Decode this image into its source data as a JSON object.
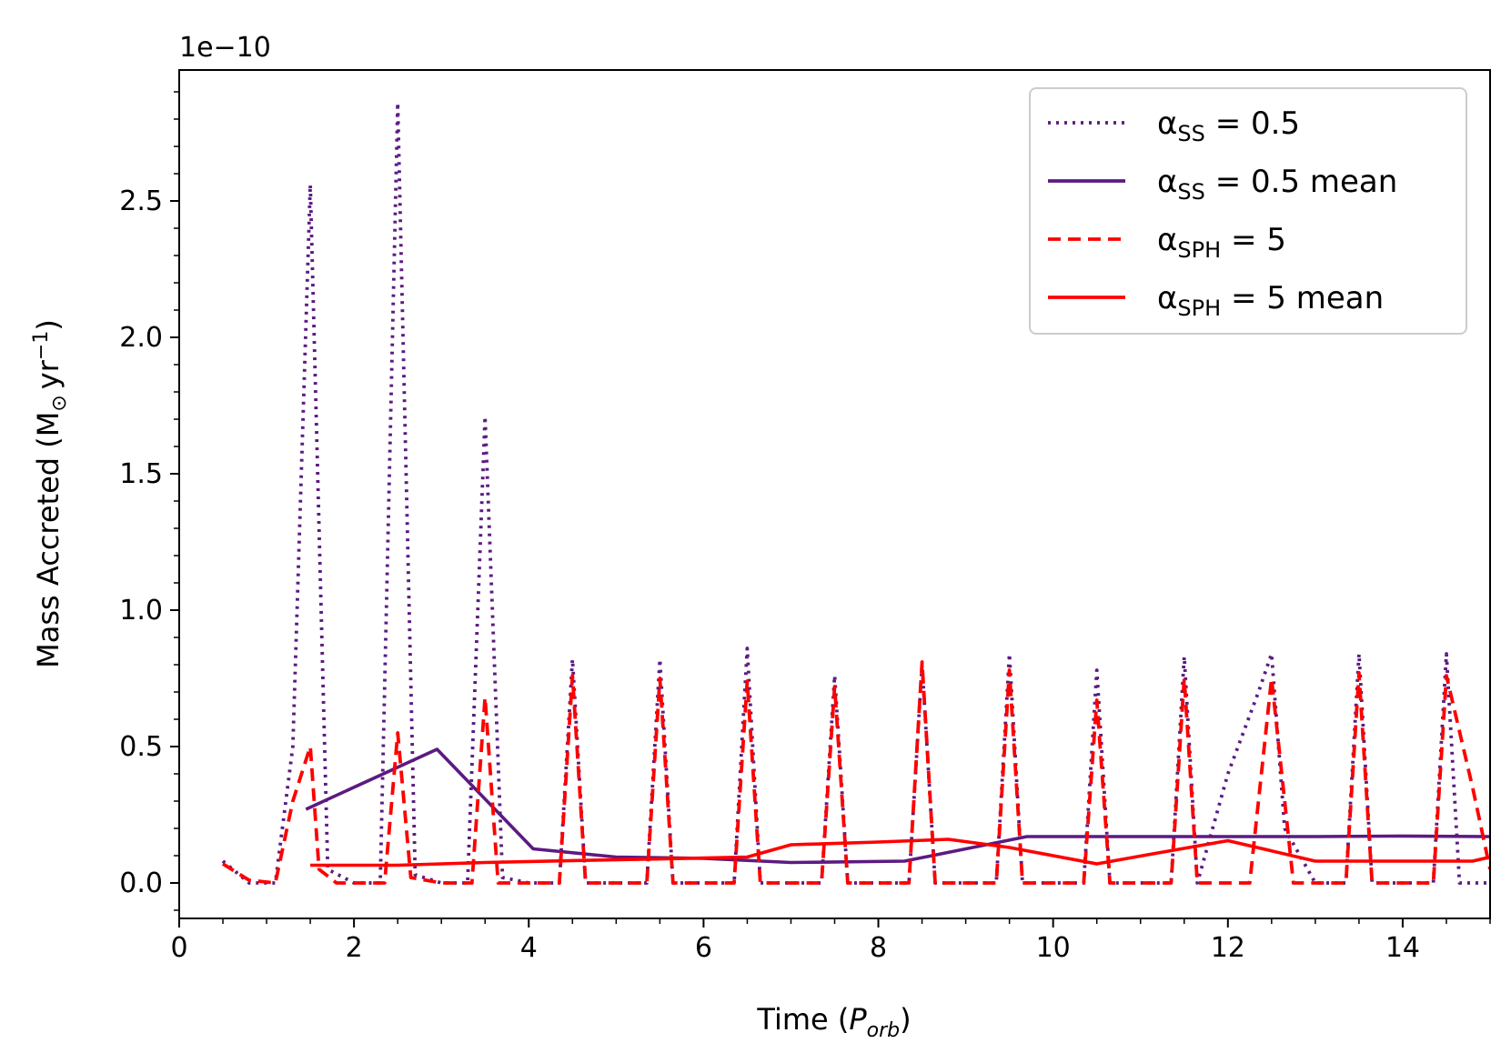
{
  "chart_data": {
    "type": "line",
    "title": "",
    "xlabel": "Time (P_orb)",
    "xlabel_prefix": "Time (",
    "xlabel_var": "P",
    "xlabel_sub": "orb",
    "xlabel_suffix": ")",
    "ylabel": "Mass Accreted (M⊙ yr−1)",
    "ylabel_main": "Mass Accreted (M",
    "ylabel_sun": "⊙",
    "ylabel_unit": "yr",
    "ylabel_sup": "−1",
    "ylabel_close": ")",
    "y_scale_label": "1e−10",
    "y_scale": 1e-10,
    "xlim": [
      0,
      15
    ],
    "ylim": [
      -0.13,
      2.98
    ],
    "x_ticks": [
      0,
      2,
      4,
      6,
      8,
      10,
      12,
      14
    ],
    "x_tick_labels": [
      "0",
      "2",
      "4",
      "6",
      "8",
      "10",
      "12",
      "14"
    ],
    "y_ticks": [
      0.0,
      0.5,
      1.0,
      1.5,
      2.0,
      2.5
    ],
    "y_tick_labels": [
      "0.0",
      "0.5",
      "1.0",
      "1.5",
      "2.0",
      "2.5"
    ],
    "x_minor_step": 0.5,
    "y_minor_step": 0.1,
    "grid": false,
    "legend_position": "top-right",
    "series": [
      {
        "name": "αSS = 0.5",
        "legend_greek": "α",
        "legend_sub": "SS",
        "legend_rest": " = 0.5",
        "color": "#5c1a82",
        "style": "dotted",
        "x": [
          0.5,
          0.8,
          1.1,
          1.3,
          1.5,
          1.7,
          2.0,
          2.3,
          2.5,
          2.7,
          3.0,
          3.3,
          3.5,
          3.7,
          4.0,
          4.35,
          4.5,
          4.65,
          5.0,
          5.35,
          5.5,
          5.65,
          6.0,
          6.35,
          6.5,
          6.65,
          7.0,
          7.35,
          7.5,
          7.65,
          8.0,
          8.35,
          8.5,
          8.65,
          9.0,
          9.35,
          9.5,
          9.65,
          10.0,
          10.35,
          10.5,
          10.65,
          11.0,
          11.35,
          11.5,
          11.65,
          12.0,
          12.35,
          12.5,
          12.65,
          13.0,
          13.35,
          13.5,
          13.65,
          14.0,
          14.35,
          14.5,
          14.65,
          15.0
        ],
        "values": [
          0.08,
          0.0,
          0.0,
          0.5,
          2.56,
          0.05,
          0.0,
          0.0,
          2.86,
          0.03,
          0.0,
          0.0,
          1.71,
          0.02,
          0.0,
          0.0,
          0.82,
          0.0,
          0.0,
          0.0,
          0.82,
          0.0,
          0.0,
          0.0,
          0.86,
          0.0,
          0.0,
          0.0,
          0.76,
          0.0,
          0.0,
          0.0,
          0.8,
          0.0,
          0.0,
          0.0,
          0.84,
          0.0,
          0.0,
          0.0,
          0.78,
          0.0,
          0.0,
          0.0,
          0.83,
          0.0,
          0.4,
          0.7,
          0.84,
          0.2,
          0.0,
          0.0,
          0.84,
          0.0,
          0.0,
          0.0,
          0.84,
          0.0,
          0.0
        ]
      },
      {
        "name": "αSS = 0.5 mean",
        "legend_greek": "α",
        "legend_sub": "SS",
        "legend_rest": " = 0.5 mean",
        "color": "#5c1a82",
        "style": "solid",
        "x": [
          1.45,
          2.95,
          4.05,
          5.0,
          6.0,
          7.0,
          8.3,
          9.7,
          11.0,
          12.0,
          13.0,
          14.0,
          15.0
        ],
        "values": [
          0.27,
          0.49,
          0.125,
          0.095,
          0.09,
          0.075,
          0.08,
          0.17,
          0.17,
          0.17,
          0.17,
          0.172,
          0.17
        ]
      },
      {
        "name": "αSPH = 5",
        "legend_greek": "α",
        "legend_sub": "SPH",
        "legend_rest": " = 5",
        "color": "#ff0000",
        "style": "dashed",
        "x": [
          0.5,
          0.8,
          1.1,
          1.3,
          1.5,
          1.6,
          1.8,
          2.0,
          2.35,
          2.5,
          2.65,
          3.0,
          3.35,
          3.5,
          3.65,
          4.0,
          4.35,
          4.5,
          4.65,
          5.0,
          5.35,
          5.5,
          5.65,
          6.0,
          6.35,
          6.5,
          6.65,
          7.0,
          7.35,
          7.5,
          7.65,
          8.0,
          8.35,
          8.5,
          8.65,
          9.0,
          9.35,
          9.5,
          9.65,
          10.0,
          10.35,
          10.5,
          10.65,
          11.0,
          11.35,
          11.5,
          11.65,
          12.0,
          12.25,
          12.5,
          12.75,
          13.0,
          13.35,
          13.5,
          13.65,
          14.0,
          14.35,
          14.5,
          14.8,
          15.0
        ],
        "values": [
          0.07,
          0.01,
          0.0,
          0.3,
          0.5,
          0.05,
          0.0,
          0.0,
          0.0,
          0.55,
          0.02,
          0.0,
          0.0,
          0.68,
          0.0,
          0.0,
          0.0,
          0.76,
          0.0,
          0.0,
          0.0,
          0.75,
          0.0,
          0.0,
          0.0,
          0.74,
          0.0,
          0.0,
          0.0,
          0.72,
          0.0,
          0.0,
          0.0,
          0.81,
          0.0,
          0.0,
          0.0,
          0.78,
          0.0,
          0.0,
          0.0,
          0.67,
          0.0,
          0.0,
          0.0,
          0.75,
          0.0,
          0.0,
          0.0,
          0.75,
          0.0,
          0.0,
          0.0,
          0.77,
          0.0,
          0.0,
          0.0,
          0.76,
          0.35,
          0.05
        ]
      },
      {
        "name": "αSPH = 5 mean",
        "legend_greek": "α",
        "legend_sub": "SPH",
        "legend_rest": " = 5 mean",
        "color": "#ff0000",
        "style": "solid",
        "x": [
          1.5,
          2.5,
          3.5,
          4.5,
          5.5,
          6.5,
          7.0,
          8.0,
          8.8,
          9.5,
          10.5,
          11.2,
          12.0,
          13.0,
          14.0,
          14.8,
          15.0
        ],
        "values": [
          0.065,
          0.065,
          0.075,
          0.082,
          0.088,
          0.095,
          0.14,
          0.15,
          0.16,
          0.13,
          0.07,
          0.11,
          0.155,
          0.08,
          0.08,
          0.08,
          0.095
        ]
      }
    ]
  }
}
